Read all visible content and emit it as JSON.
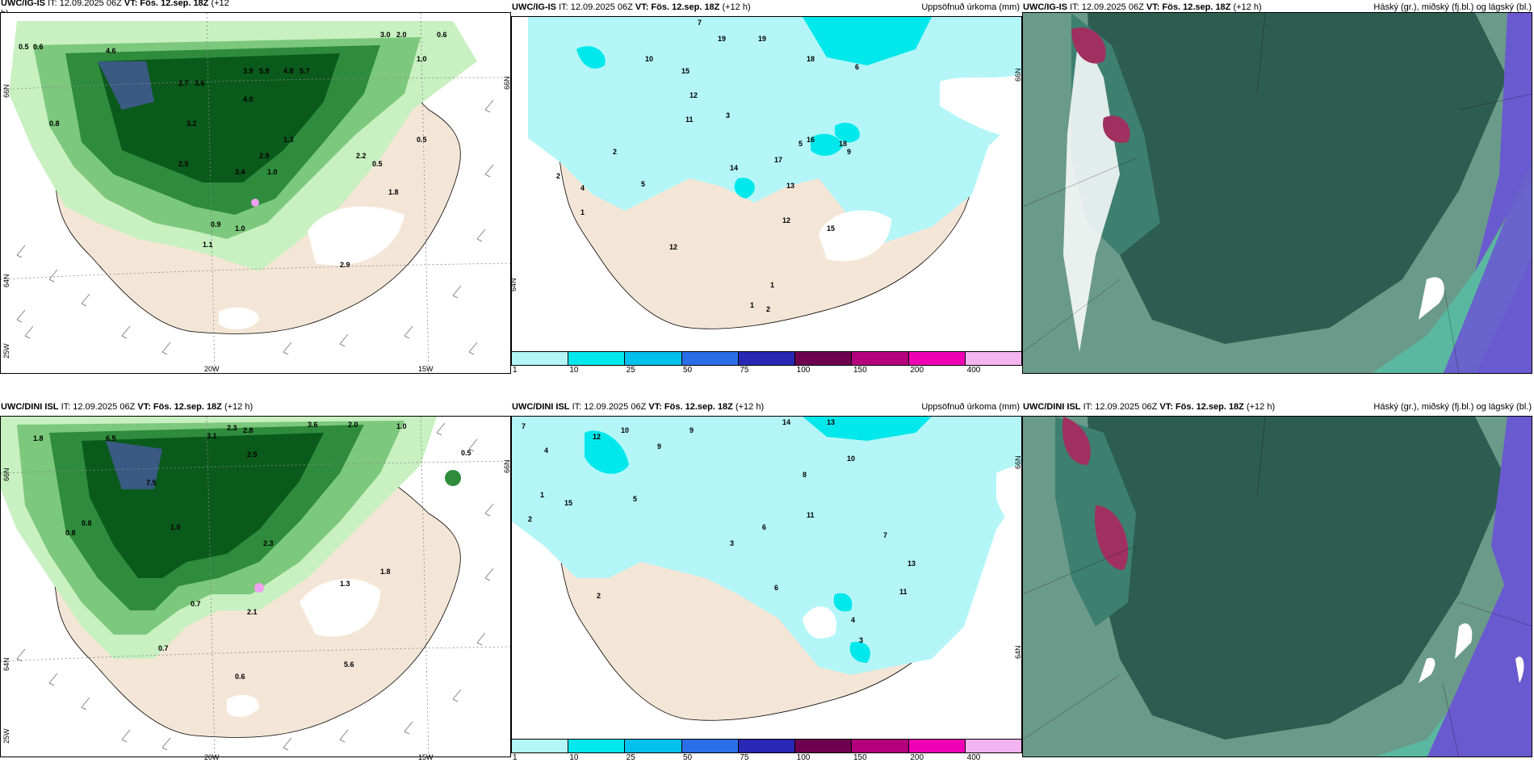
{
  "panels": [
    {
      "id": "p1",
      "title_pre": "UWC/IG-IS",
      "title_it": "IT: 12.09.2025 06Z",
      "title_vt": "VT: Fös. 12.sep. 18Z",
      "title_post": "(+12",
      "title_post2": "h)",
      "right": ""
    },
    {
      "id": "p2",
      "title_pre": "UWC/IG-IS",
      "title_it": "IT: 12.09.2025 06Z",
      "title_vt": "VT: Fös. 12.sep. 18Z",
      "title_post": "(+12 h)",
      "right": "Uppsöfnuð úrkoma (mm)"
    },
    {
      "id": "p3",
      "title_pre": "UWC/IG-IS",
      "title_it": "IT: 12.09.2025 06Z",
      "title_vt": "VT: Fös. 12.sep. 18Z",
      "title_post": "(+12 h)",
      "right": "Háský (gr.), miðský (fj.bl.) og lágský (bl.)"
    },
    {
      "id": "p4",
      "title_pre": "UWC/DINI ISL",
      "title_it": "IT: 12.09.2025 06Z",
      "title_vt": "VT: Fös. 12.sep. 18Z",
      "title_post": "(+12 h)",
      "right": ""
    },
    {
      "id": "p5",
      "title_pre": "UWC/DINI ISL",
      "title_it": "IT: 12.09.2025 06Z",
      "title_vt": "VT: Fös. 12.sep. 18Z",
      "title_post": "(+12 h)",
      "right": "Uppsöfnuð úrkoma (mm)"
    },
    {
      "id": "p6",
      "title_pre": "UWC/DINI ISL",
      "title_it": "IT: 12.09.2025 06Z",
      "title_vt": "VT: Fös. 12.sep. 18Z",
      "title_post": "(+12 h)",
      "right": "Háský (gr.), miðský (fj.bl.) og lágský (bl.)"
    }
  ],
  "axis_labels": {
    "lat66": "66N",
    "lat64": "64N",
    "lat25w": "25W",
    "lon20": "20W",
    "lon15": "15W"
  },
  "colorbar": {
    "ticks": [
      "1",
      "10",
      "25",
      "50",
      "75",
      "100",
      "150",
      "200",
      "400"
    ],
    "colors": [
      "#b4f6f8",
      "#00e8ec",
      "#00c0ec",
      "#2a6fe8",
      "#2828b4",
      "#6e0050",
      "#b4007c",
      "#f000b4",
      "#f4b4f0"
    ]
  },
  "map_values": {
    "p1": [
      "0.5",
      "0.6",
      "4.6",
      "3.9",
      "5.9",
      "4.8",
      "5.7",
      "3.0",
      "2.0",
      "0.6",
      "1.0",
      "0.5",
      "0.8",
      "3.2",
      "2.7",
      "3.6",
      "2.5",
      "1.1",
      "1.0",
      "0.9",
      "0.5",
      "2.9",
      "3.4",
      "1.0",
      "2.9",
      "2.2",
      "1.3",
      "4.0",
      "1.8"
    ],
    "p2": [
      "7",
      "10",
      "15",
      "19",
      "19",
      "11",
      "12",
      "18",
      "6",
      "2",
      "5",
      "9",
      "14",
      "16",
      "18",
      "13",
      "17",
      "12",
      "4",
      "1",
      "3",
      "2",
      "12",
      "1",
      "2",
      "1",
      "15",
      "5"
    ],
    "p4": [
      "1.8",
      "6.5",
      "7.5",
      "3.1",
      "2.3",
      "2.8",
      "2.5",
      "3.6",
      "2.0",
      "0.5",
      "1.0",
      "0.8",
      "0.7",
      "0.6",
      "2.1",
      "1.3",
      "1.8",
      "0.8",
      "5.6",
      "0.7",
      "1.0",
      "2.3"
    ],
    "p5": [
      "7",
      "10",
      "9",
      "14",
      "13",
      "12",
      "11",
      "4",
      "8",
      "1",
      "6",
      "5",
      "3",
      "2",
      "15",
      "10",
      "7",
      "13",
      "11",
      "2",
      "3",
      "4",
      "9",
      "6"
    ]
  },
  "colors": {
    "land": "#f4e6d6",
    "sea_wind": "#ffffff",
    "precip_light": "#b4f6f8",
    "precip_mid": "#00e8ec",
    "green_dark": "#0a5a1c",
    "green_mid": "#2e8c3c",
    "green_light": "#7cc87c",
    "green_pale": "#c8f0c0",
    "cloud_high": "#6a9a8a",
    "cloud_dark": "#2d5d50",
    "cloud_low": "#6a5ad0",
    "cloud_teal": "#5ab8a0"
  }
}
